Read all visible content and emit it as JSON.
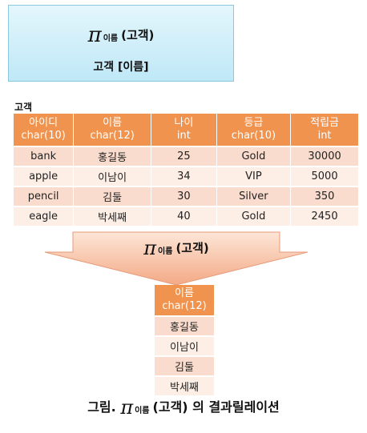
{
  "formula": {
    "symbol": "π",
    "attribute": "이름",
    "relation": "(고객)",
    "sql_form": "고객 [이름]"
  },
  "source_table": {
    "caption": "고객",
    "columns": [
      {
        "name": "아이디",
        "type": "char(10)"
      },
      {
        "name": "이름",
        "type": "char(12)"
      },
      {
        "name": "나이",
        "type": "int"
      },
      {
        "name": "등급",
        "type": "char(10)"
      },
      {
        "name": "적립금",
        "type": "int"
      }
    ],
    "rows": [
      [
        "bank",
        "홍길동",
        "25",
        "Gold",
        "30000"
      ],
      [
        "apple",
        "이남이",
        "34",
        "VIP",
        "5000"
      ],
      [
        "pencil",
        "김둘",
        "30",
        "Silver",
        "350"
      ],
      [
        "eagle",
        "박세째",
        "40",
        "Gold",
        "2450"
      ]
    ]
  },
  "arrow": {
    "symbol": "π",
    "attribute": "이름",
    "relation": "(고객)"
  },
  "result_table": {
    "column": {
      "name": "이름",
      "type": "char(12)"
    },
    "rows": [
      "홍길동",
      "이남이",
      "김둘",
      "박세째"
    ]
  },
  "figure_caption": {
    "prefix": "그림.",
    "symbol": "π",
    "attribute": "이름",
    "relation": "(고객)",
    "suffix": "의 결과릴레이션"
  },
  "colors": {
    "header": "#f0934f",
    "row_odd": "#f9dccd",
    "row_even": "#fdeee6",
    "formula_box": "#bfe8f7"
  }
}
